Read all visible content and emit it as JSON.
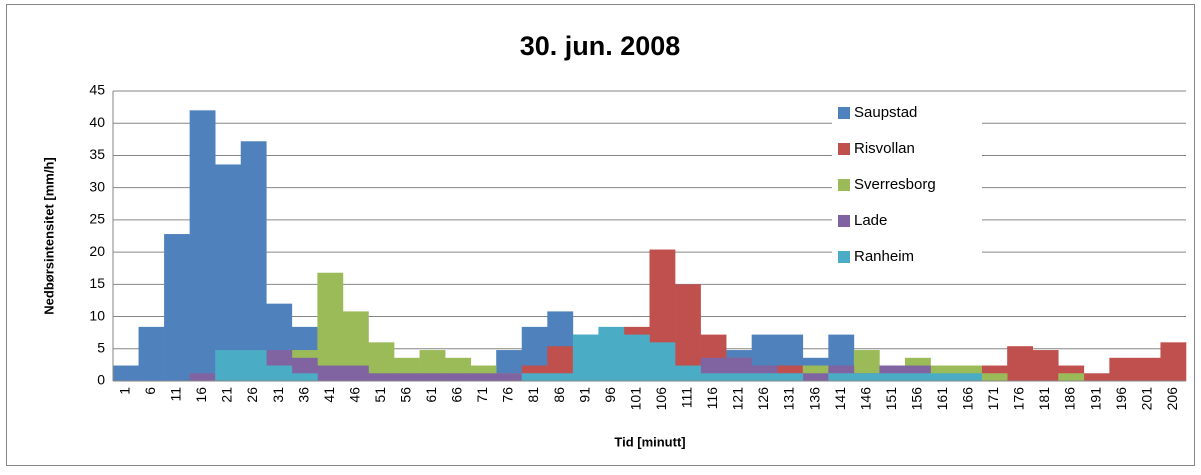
{
  "chart_data": {
    "type": "bar",
    "title": "30. jun. 2008",
    "x_label": "Tid [minutt]",
    "y_label": "Nedbørsintensitet [mm/h]",
    "categories": [
      1,
      6,
      11,
      16,
      21,
      26,
      31,
      36,
      41,
      46,
      51,
      56,
      61,
      66,
      71,
      76,
      81,
      86,
      91,
      96,
      101,
      106,
      111,
      116,
      121,
      126,
      131,
      136,
      141,
      146,
      151,
      156,
      161,
      166,
      171,
      176,
      181,
      186,
      191,
      196,
      201,
      206
    ],
    "series": [
      {
        "name": "Saupstad",
        "color": "#4f81bd",
        "values": [
          2.4,
          8.4,
          22.8,
          42,
          33.6,
          37.2,
          12,
          8.4,
          4.8,
          2.4,
          1.2,
          1.2,
          1.2,
          1.2,
          1.2,
          4.8,
          8.4,
          10.8,
          7.2,
          7.2,
          7.2,
          6,
          4.8,
          3.6,
          4.8,
          7.2,
          7.2,
          3.6,
          7.2,
          1.2,
          1.2,
          1.2,
          0,
          0,
          0,
          0,
          0,
          0,
          0,
          0,
          0,
          0
        ]
      },
      {
        "name": "Risvollan",
        "color": "#c0504d",
        "values": [
          0,
          0,
          0,
          0,
          0,
          0,
          0,
          0,
          0,
          0,
          0,
          0,
          0,
          0,
          0,
          0,
          2.4,
          5.4,
          3.6,
          4.8,
          8.4,
          20.4,
          15,
          7.2,
          3.6,
          2.4,
          2.4,
          1.2,
          1.2,
          1.2,
          1.2,
          1.2,
          1.2,
          1.2,
          2.4,
          5.4,
          4.8,
          2.4,
          1.2,
          3.6,
          3.6,
          6
        ]
      },
      {
        "name": "Sverresborg",
        "color": "#9bbb59",
        "values": [
          0,
          0,
          0,
          0,
          0,
          0,
          0,
          4.8,
          16.8,
          10.8,
          6,
          3.6,
          4.8,
          3.6,
          2.4,
          1.2,
          0,
          0,
          0,
          0,
          0,
          0,
          0,
          0,
          0,
          0,
          0,
          2.4,
          0,
          4.8,
          2.4,
          3.6,
          2.4,
          2.4,
          1.2,
          0,
          0,
          1.2,
          0,
          0,
          0,
          0
        ]
      },
      {
        "name": "Lade",
        "color": "#8064a2",
        "values": [
          0,
          0,
          0,
          1.2,
          0,
          0,
          4.8,
          3.6,
          2.4,
          2.4,
          1.2,
          1.2,
          1.2,
          1.2,
          1.2,
          1.2,
          0,
          0,
          0,
          0,
          0,
          0,
          0,
          3.6,
          3.6,
          2.4,
          1.2,
          1.2,
          2.4,
          1.2,
          2.4,
          2.4,
          0,
          0,
          0,
          0,
          0,
          0,
          0,
          0,
          0,
          0
        ]
      },
      {
        "name": "Ranheim",
        "color": "#4bacc6",
        "values": [
          0,
          0,
          0,
          0,
          4.8,
          4.8,
          2.4,
          1.2,
          0,
          0,
          0,
          0,
          0,
          0,
          0,
          0,
          1.2,
          1.2,
          7.2,
          8.4,
          7.2,
          6,
          2.4,
          1.2,
          1.2,
          1.2,
          1.2,
          0,
          1.2,
          1.2,
          1.2,
          1.2,
          1.2,
          1.2,
          0,
          0,
          0,
          0,
          0,
          0,
          0,
          0
        ]
      }
    ],
    "ylim": [
      0,
      45
    ],
    "yticks": [
      0,
      5,
      10,
      15,
      20,
      25,
      30,
      35,
      40,
      45
    ],
    "grid": true,
    "legend": "right"
  }
}
